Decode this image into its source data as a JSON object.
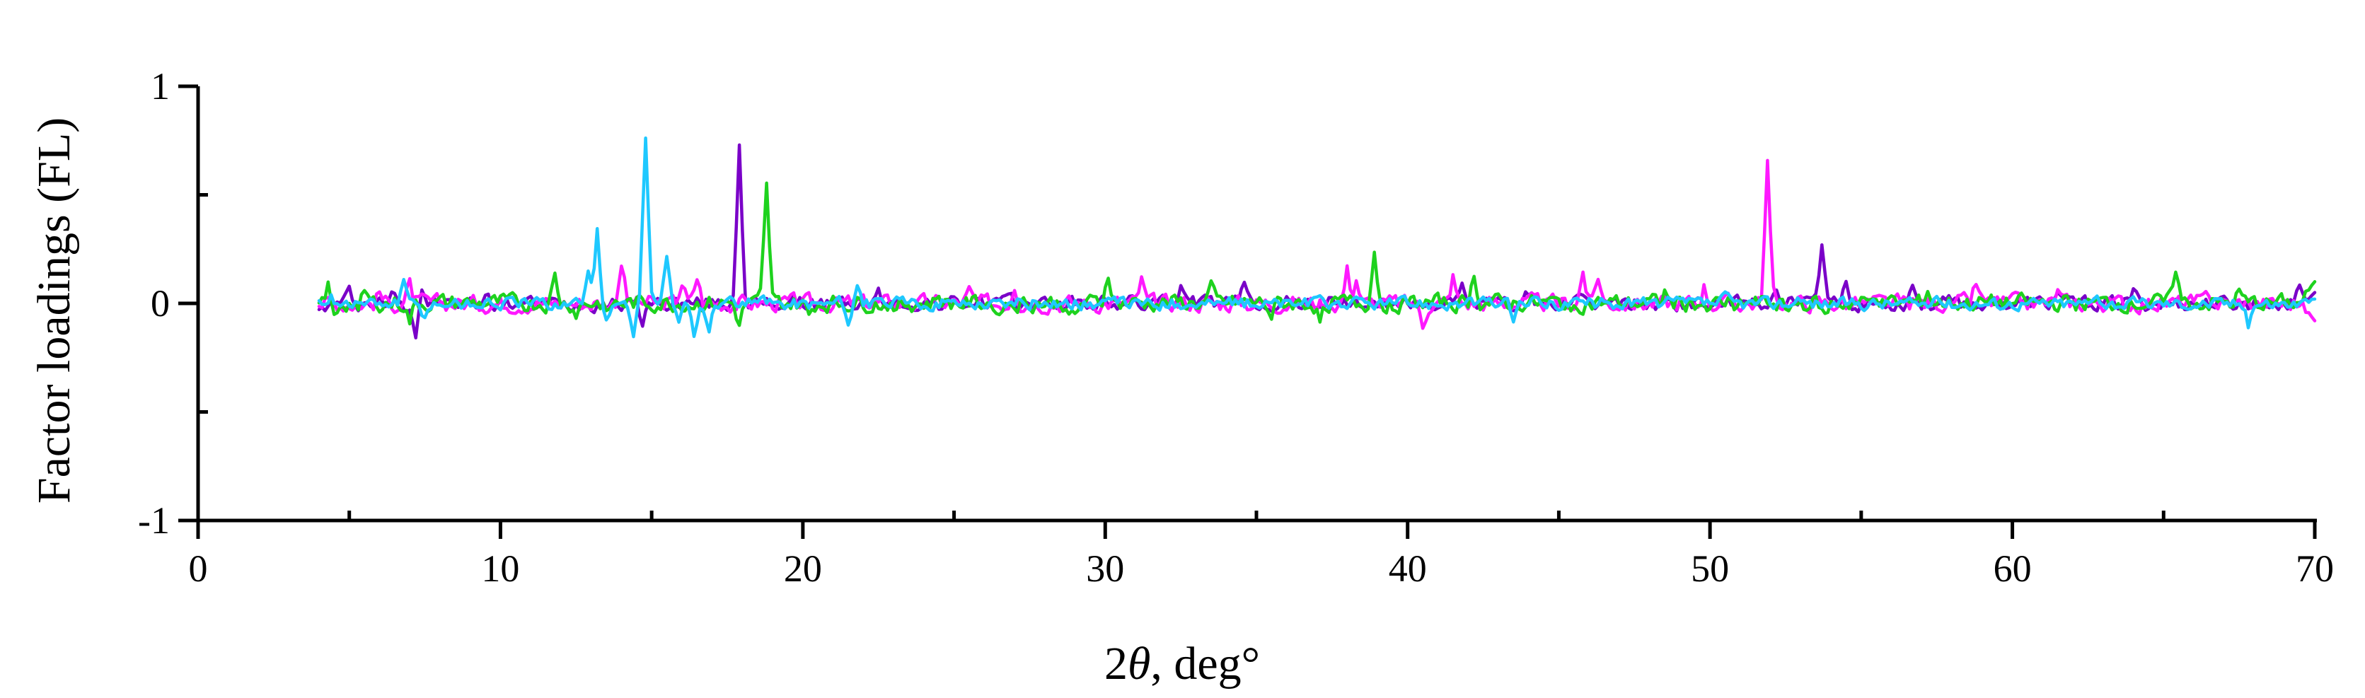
{
  "chart_data": {
    "type": "line",
    "title": "",
    "xlabel": {
      "prefix": "2",
      "symbol": "θ",
      "suffix": ", deg°"
    },
    "ylabel": "Factor loadings (FL)",
    "xlim": [
      0,
      70
    ],
    "ylim": [
      -1,
      1
    ],
    "x_ticks": [
      0,
      10,
      20,
      30,
      40,
      50,
      60,
      70
    ],
    "x_tick_labels": [
      "0",
      "10",
      "20",
      "30",
      "40",
      "50",
      "60",
      "70"
    ],
    "x_minor_step": 5,
    "y_ticks": [
      1,
      0,
      -1
    ],
    "y_tick_labels": [
      "1",
      "0",
      "-1"
    ],
    "y_minor_step": 0.5,
    "grid": false,
    "legend": "none",
    "x_range": [
      4,
      70
    ],
    "series": [
      {
        "color": "#7a00c8",
        "baseline_amplitude": 0.03,
        "end_value": 0.05,
        "peaks": [
          {
            "x": 4.2,
            "y": -0.05
          },
          {
            "x": 5.0,
            "y": 0.05
          },
          {
            "x": 6.5,
            "y": 0.06
          },
          {
            "x": 7.2,
            "y": -0.14
          },
          {
            "x": 7.4,
            "y": 0.08
          },
          {
            "x": 9.5,
            "y": 0.04
          },
          {
            "x": 14.7,
            "y": -0.08
          },
          {
            "x": 17.9,
            "y": 0.75
          },
          {
            "x": 18.2,
            "y": -0.04
          },
          {
            "x": 22.5,
            "y": 0.04
          },
          {
            "x": 32.5,
            "y": 0.1
          },
          {
            "x": 34.6,
            "y": 0.1
          },
          {
            "x": 41.8,
            "y": 0.07
          },
          {
            "x": 44,
            "y": 0.05
          },
          {
            "x": 52.2,
            "y": 0.09
          },
          {
            "x": 53.7,
            "y": 0.24
          },
          {
            "x": 54.5,
            "y": 0.09
          },
          {
            "x": 56.7,
            "y": 0.1
          },
          {
            "x": 61.5,
            "y": 0.06
          },
          {
            "x": 64,
            "y": 0.05
          },
          {
            "x": 69.5,
            "y": 0.09
          }
        ]
      },
      {
        "color": "#ff18ff",
        "baseline_amplitude": 0.035,
        "end_value": -0.08,
        "peaks": [
          {
            "x": 6.0,
            "y": 0.05
          },
          {
            "x": 7.0,
            "y": 0.08
          },
          {
            "x": 14.0,
            "y": 0.2
          },
          {
            "x": 16.0,
            "y": 0.1
          },
          {
            "x": 16.5,
            "y": 0.12
          },
          {
            "x": 25.5,
            "y": 0.05
          },
          {
            "x": 27,
            "y": 0.1
          },
          {
            "x": 31.2,
            "y": 0.1
          },
          {
            "x": 38,
            "y": 0.15
          },
          {
            "x": 38.3,
            "y": 0.12
          },
          {
            "x": 40.5,
            "y": -0.1
          },
          {
            "x": 41.5,
            "y": 0.12
          },
          {
            "x": 45.8,
            "y": 0.15
          },
          {
            "x": 46.3,
            "y": 0.13
          },
          {
            "x": 49.8,
            "y": 0.08
          },
          {
            "x": 51.9,
            "y": 0.64
          },
          {
            "x": 58.8,
            "y": 0.09
          },
          {
            "x": 61.5,
            "y": 0.05
          },
          {
            "x": 66.5,
            "y": 0.05
          }
        ]
      },
      {
        "color": "#1ed21e",
        "baseline_amplitude": 0.035,
        "end_value": 0.1,
        "peaks": [
          {
            "x": 4.3,
            "y": 0.08
          },
          {
            "x": 4.5,
            "y": -0.08
          },
          {
            "x": 5.5,
            "y": 0.06
          },
          {
            "x": 7.0,
            "y": -0.08
          },
          {
            "x": 11.8,
            "y": 0.12
          },
          {
            "x": 12.5,
            "y": -0.04
          },
          {
            "x": 17.9,
            "y": -0.1
          },
          {
            "x": 18.8,
            "y": 0.52
          },
          {
            "x": 20.2,
            "y": -0.06
          },
          {
            "x": 24.5,
            "y": 0.04
          },
          {
            "x": 29,
            "y": -0.06
          },
          {
            "x": 30.1,
            "y": 0.15
          },
          {
            "x": 33.5,
            "y": 0.06
          },
          {
            "x": 35.5,
            "y": -0.06
          },
          {
            "x": 37.1,
            "y": -0.09
          },
          {
            "x": 38.9,
            "y": 0.24
          },
          {
            "x": 42.2,
            "y": 0.14
          },
          {
            "x": 48.5,
            "y": 0.05
          },
          {
            "x": 53.8,
            "y": -0.07
          },
          {
            "x": 55.5,
            "y": 0.05
          },
          {
            "x": 57.2,
            "y": 0.06
          },
          {
            "x": 65.4,
            "y": 0.17
          },
          {
            "x": 67.5,
            "y": 0.05
          }
        ]
      },
      {
        "color": "#1ec8ff",
        "baseline_amplitude": 0.025,
        "end_value": 0.02,
        "peaks": [
          {
            "x": 4.4,
            "y": 0.05
          },
          {
            "x": 6.8,
            "y": 0.09
          },
          {
            "x": 7.5,
            "y": -0.06
          },
          {
            "x": 12.9,
            "y": 0.16
          },
          {
            "x": 13.2,
            "y": 0.34
          },
          {
            "x": 13.5,
            "y": -0.1
          },
          {
            "x": 14.4,
            "y": -0.18
          },
          {
            "x": 14.8,
            "y": 0.78
          },
          {
            "x": 15.5,
            "y": 0.21
          },
          {
            "x": 15.9,
            "y": -0.1
          },
          {
            "x": 16.4,
            "y": -0.14
          },
          {
            "x": 16.9,
            "y": -0.12
          },
          {
            "x": 21.8,
            "y": 0.1
          },
          {
            "x": 21.5,
            "y": -0.1
          },
          {
            "x": 43.5,
            "y": -0.07
          },
          {
            "x": 50.5,
            "y": 0.03
          },
          {
            "x": 62.8,
            "y": 0.06
          },
          {
            "x": 67.8,
            "y": -0.1
          }
        ]
      }
    ]
  }
}
